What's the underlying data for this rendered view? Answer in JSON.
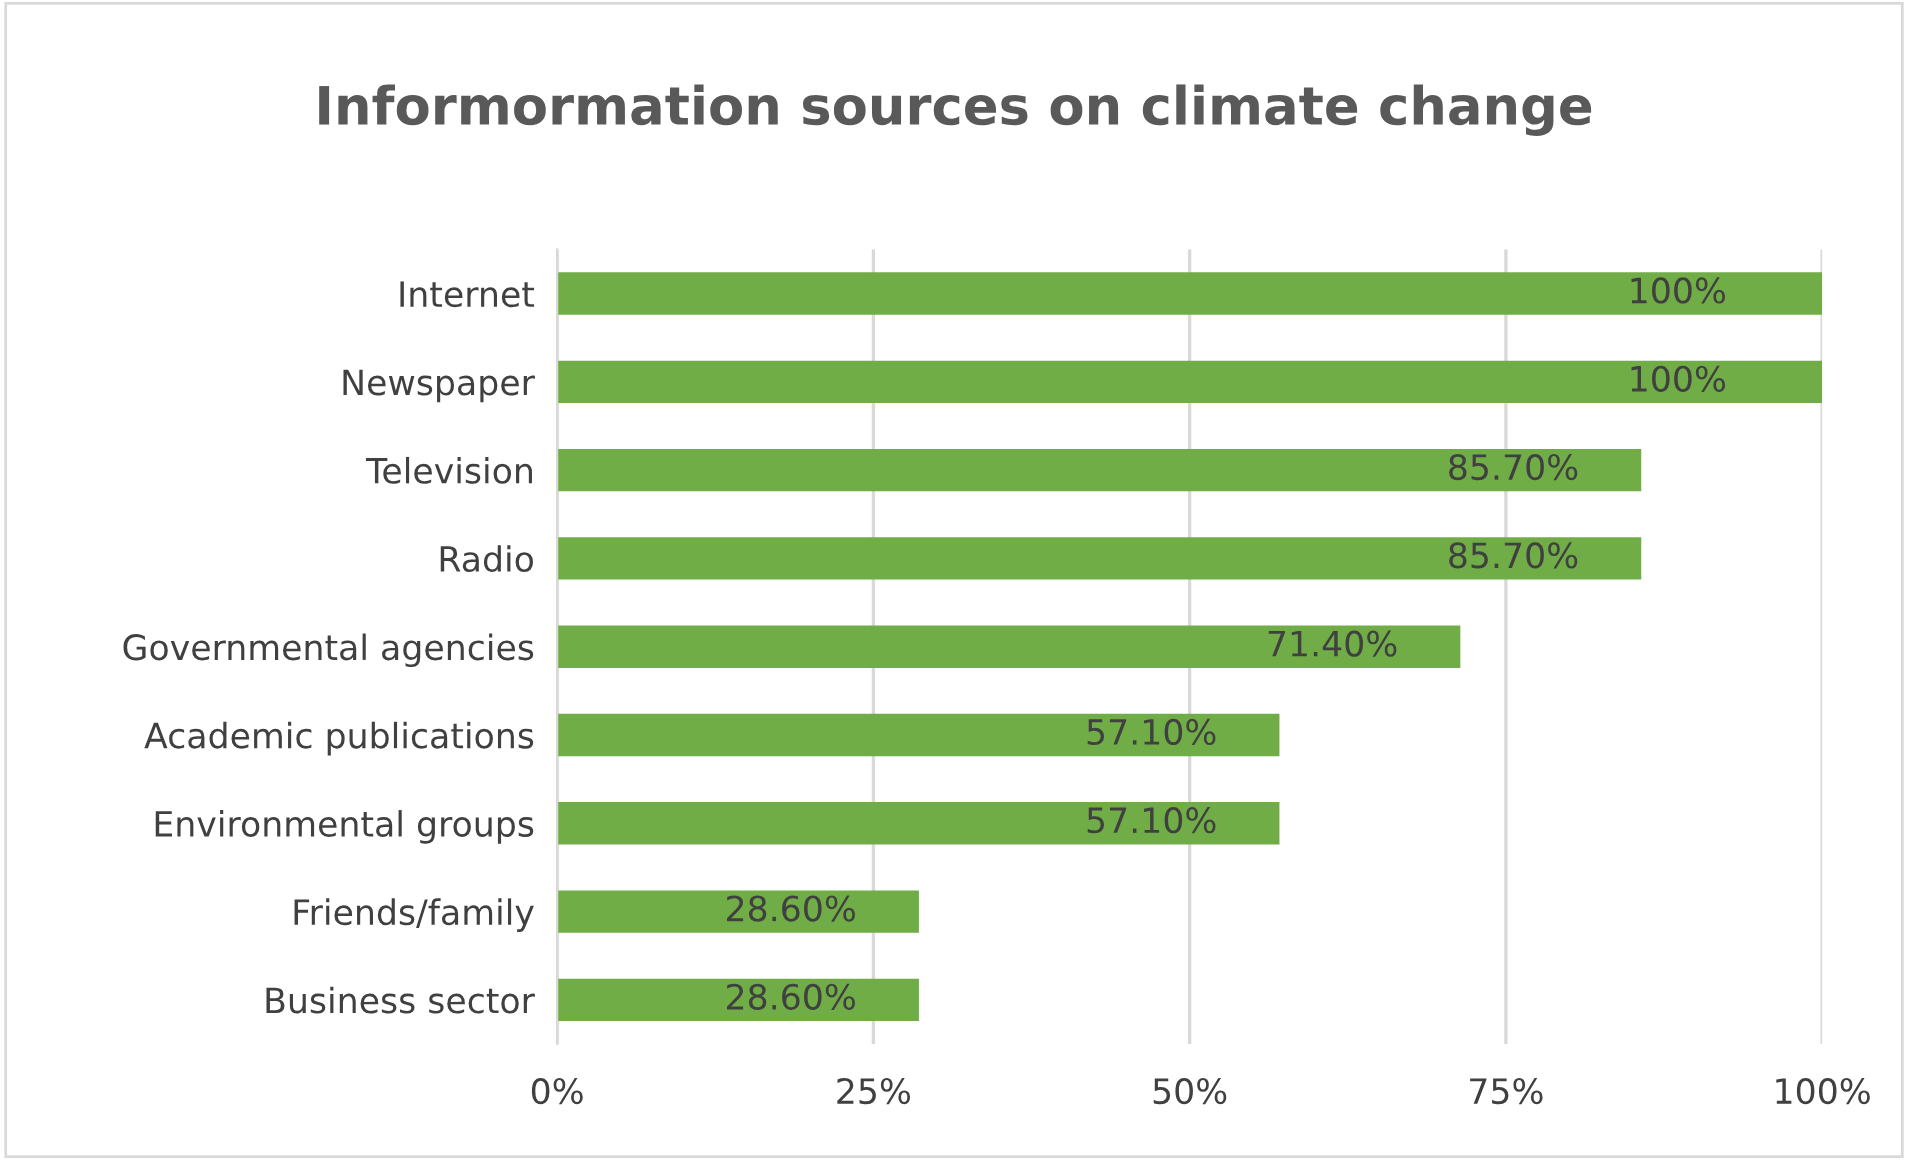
{
  "chart_data": {
    "type": "bar",
    "orientation": "horizontal",
    "title": "Informormation sources on climate change",
    "categories": [
      "Internet",
      "Newspaper",
      "Television",
      "Radio",
      "Governmental agencies",
      "Academic publications",
      "Environmental groups",
      "Friends/family",
      "Business sector"
    ],
    "values": [
      100,
      100,
      85.7,
      85.7,
      71.4,
      57.1,
      57.1,
      28.6,
      28.6
    ],
    "value_labels": [
      "100%",
      "100%",
      "85.70%",
      "85.70%",
      "71.40%",
      "57.10%",
      "57.10%",
      "28.60%",
      "28.60%"
    ],
    "color": "#70ad47",
    "xlim": [
      0,
      100
    ],
    "xticks": [
      {
        "value": 0,
        "label": "0%"
      },
      {
        "value": 25,
        "label": "25%"
      },
      {
        "value": 50,
        "label": "50%"
      },
      {
        "value": 75,
        "label": "75%"
      },
      {
        "value": 100,
        "label": "100%"
      }
    ],
    "grid": "x",
    "legend": false
  }
}
